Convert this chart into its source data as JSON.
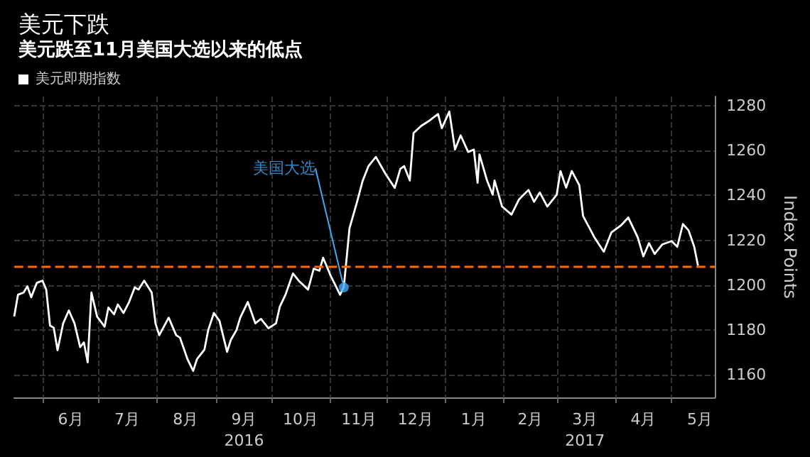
{
  "chart_data": {
    "type": "line",
    "title": "美元下跌",
    "subtitle": "美元跌至11月美国大选以来的低点",
    "ylabel": "Index Points",
    "legend": "top left",
    "grid": true,
    "marker": "none",
    "line_style": "solid",
    "xlim": [
      "2016-05-17",
      "2017-05-24"
    ],
    "ylim": [
      1150,
      1284
    ],
    "yticks": [
      1160,
      1180,
      1200,
      1220,
      1240,
      1260,
      1280
    ],
    "xticks": [
      {
        "value": "2016-06-01",
        "label": null
      },
      {
        "value": "2016-06-16",
        "label": "6月"
      },
      {
        "value": "2016-07-01",
        "label": null
      },
      {
        "value": "2016-07-16",
        "label": "7月"
      },
      {
        "value": "2016-08-01",
        "label": null
      },
      {
        "value": "2016-08-16",
        "label": "8月"
      },
      {
        "value": "2016-09-01",
        "label": null
      },
      {
        "value": "2016-09-16",
        "label": "9月\n2016"
      },
      {
        "value": "2016-10-01",
        "label": null
      },
      {
        "value": "2016-10-16",
        "label": "10月"
      },
      {
        "value": "2016-11-01",
        "label": null
      },
      {
        "value": "2016-11-16",
        "label": "11月"
      },
      {
        "value": "2016-12-01",
        "label": null
      },
      {
        "value": "2016-12-16",
        "label": "12月"
      },
      {
        "value": "2017-01-01",
        "label": null
      },
      {
        "value": "2017-01-16",
        "label": "1月"
      },
      {
        "value": "2017-02-01",
        "label": null
      },
      {
        "value": "2017-02-15",
        "label": "2月"
      },
      {
        "value": "2017-03-01",
        "label": null
      },
      {
        "value": "2017-03-16",
        "label": "3月\n2017"
      },
      {
        "value": "2017-04-01",
        "label": null
      },
      {
        "value": "2017-04-16",
        "label": "4月"
      },
      {
        "value": "2017-05-01",
        "label": null
      },
      {
        "value": "2017-05-16",
        "label": "5月"
      }
    ],
    "ref_lines": [
      {
        "axis": "y",
        "value": 1208,
        "label": null,
        "color": "#ff6a00",
        "line_style": "dashed"
      }
    ],
    "annotations": [
      {
        "text": "美国大选",
        "x": "2016-11-08",
        "y": 1199
      }
    ],
    "series": [
      {
        "name": "美元即期指数",
        "color": "#ffffff",
        "x": [
          "2016-05-17",
          "2016-05-19",
          "2016-05-22",
          "2016-05-24",
          "2016-05-26",
          "2016-05-29",
          "2016-06-01",
          "2016-06-03",
          "2016-06-05",
          "2016-06-07",
          "2016-06-09",
          "2016-06-12",
          "2016-06-15",
          "2016-06-18",
          "2016-06-21",
          "2016-06-23",
          "2016-06-25",
          "2016-06-27",
          "2016-06-30",
          "2016-07-04",
          "2016-07-06",
          "2016-07-09",
          "2016-07-11",
          "2016-07-14",
          "2016-07-17",
          "2016-07-20",
          "2016-07-22",
          "2016-07-25",
          "2016-07-29",
          "2016-07-31",
          "2016-08-02",
          "2016-08-07",
          "2016-08-11",
          "2016-08-13",
          "2016-08-17",
          "2016-08-20",
          "2016-08-22",
          "2016-08-26",
          "2016-08-28",
          "2016-08-31",
          "2016-09-03",
          "2016-09-07",
          "2016-09-09",
          "2016-09-12",
          "2016-09-14",
          "2016-09-18",
          "2016-09-22",
          "2016-09-25",
          "2016-09-29",
          "2016-10-03",
          "2016-10-05",
          "2016-10-08",
          "2016-10-12",
          "2016-10-15",
          "2016-10-20",
          "2016-10-23",
          "2016-10-26",
          "2016-10-28",
          "2016-11-01",
          "2016-11-06",
          "2016-11-08",
          "2016-11-11",
          "2016-11-15",
          "2016-11-18",
          "2016-11-21",
          "2016-11-25",
          "2016-11-30",
          "2016-12-05",
          "2016-12-08",
          "2016-12-10",
          "2016-12-13",
          "2016-12-15",
          "2016-12-19",
          "2016-12-23",
          "2016-12-28",
          "2016-12-30",
          "2017-01-03",
          "2017-01-06",
          "2017-01-09",
          "2017-01-13",
          "2017-01-16",
          "2017-01-18",
          "2017-01-19",
          "2017-01-23",
          "2017-01-26",
          "2017-01-27",
          "2017-01-31",
          "2017-02-05",
          "2017-02-09",
          "2017-02-14",
          "2017-02-17",
          "2017-02-20",
          "2017-02-24",
          "2017-03-01",
          "2017-03-03",
          "2017-03-06",
          "2017-03-09",
          "2017-03-13",
          "2017-03-15",
          "2017-03-21",
          "2017-03-26",
          "2017-03-30",
          "2017-04-04",
          "2017-04-08",
          "2017-04-13",
          "2017-04-16",
          "2017-04-19",
          "2017-04-22",
          "2017-04-26",
          "2017-05-01",
          "2017-05-04",
          "2017-05-07",
          "2017-05-10",
          "2017-05-13",
          "2017-05-15"
        ],
        "values": [
          1186,
          1195.7,
          1196.7,
          1199.5,
          1194.6,
          1201,
          1202,
          1198,
          1182,
          1181,
          1171,
          1183,
          1188.7,
          1183,
          1172.4,
          1174.5,
          1165.6,
          1196.7,
          1186,
          1181.5,
          1190,
          1187,
          1191.4,
          1187.6,
          1192.5,
          1199,
          1198,
          1202,
          1196.7,
          1183,
          1177.7,
          1185.5,
          1177.7,
          1176.6,
          1167,
          1161.8,
          1167,
          1171.3,
          1180,
          1187.6,
          1184,
          1170.3,
          1175.6,
          1180,
          1185.5,
          1192.5,
          1183,
          1185,
          1180.8,
          1183,
          1190.4,
          1195.7,
          1205.2,
          1202,
          1198,
          1207.3,
          1206.4,
          1212.2,
          1204.2,
          1195.7,
          1199.3,
          1225.3,
          1237,
          1246.5,
          1252.9,
          1257.1,
          1249.7,
          1243.3,
          1251.8,
          1253,
          1246.6,
          1267.7,
          1270.9,
          1273,
          1276.2,
          1269.9,
          1277.3,
          1260.4,
          1266.7,
          1259.3,
          1260.4,
          1245.6,
          1258.2,
          1246.6,
          1240.3,
          1246.6,
          1235,
          1231.4,
          1238.2,
          1242.4,
          1237.1,
          1241.3,
          1235,
          1240.3,
          1250.8,
          1243.4,
          1250.8,
          1244.5,
          1230.8,
          1221.3,
          1214.9,
          1223.4,
          1226.5,
          1230.1,
          1221.3,
          1212.8,
          1218.7,
          1213.9,
          1218.1,
          1219.6,
          1217.1,
          1227.2,
          1224.4,
          1217.1,
          1208.6
        ]
      }
    ]
  }
}
